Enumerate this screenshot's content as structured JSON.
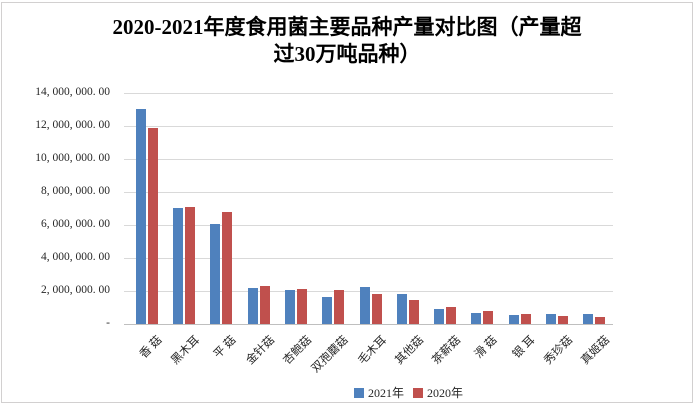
{
  "title": {
    "line1": "2020-2021年度食用菌主要品种产量对比图（产量超",
    "line2": "过30万吨品种）"
  },
  "chart_data": {
    "type": "bar",
    "title": "2020-2021年度食用菌主要品种产量对比图（产量超过30万吨品种）",
    "categories": [
      "香 菇",
      "黑木耳",
      "平 菇",
      "金针菇",
      "杏鲍菇",
      "双孢蘑菇",
      "毛木耳",
      "其他菇",
      "茶薪菇",
      "滑 菇",
      "银 耳",
      "秀珍菇",
      "真姬菇"
    ],
    "series": [
      {
        "name": "2021年",
        "color": "#4F81BD",
        "values": [
          13000000,
          7050000,
          6060000,
          2190000,
          2070000,
          1610000,
          2220000,
          1830000,
          930000,
          670000,
          560000,
          600000,
          600000
        ]
      },
      {
        "name": "2020年",
        "color": "#C0504D",
        "values": [
          11850000,
          7080000,
          6810000,
          2320000,
          2150000,
          2070000,
          1830000,
          1430000,
          1000000,
          760000,
          600000,
          460000,
          440000
        ]
      }
    ],
    "ylim": [
      0,
      14000000
    ],
    "y_tick_step": 2000000,
    "y_tick_labels": [
      "-",
      "2, 000, 000. 00",
      "4, 000, 000. 00",
      "6, 000, 000. 00",
      "8, 000, 000. 00",
      "10, 000, 000. 00",
      "12, 000, 000. 00",
      "14, 000, 000. 00"
    ],
    "grid": true,
    "legend_position": "bottom"
  },
  "colors": {
    "series_2021": "#4F81BD",
    "series_2020": "#C0504D",
    "gridline": "#D9D9D9",
    "axis_text": "#262626"
  }
}
